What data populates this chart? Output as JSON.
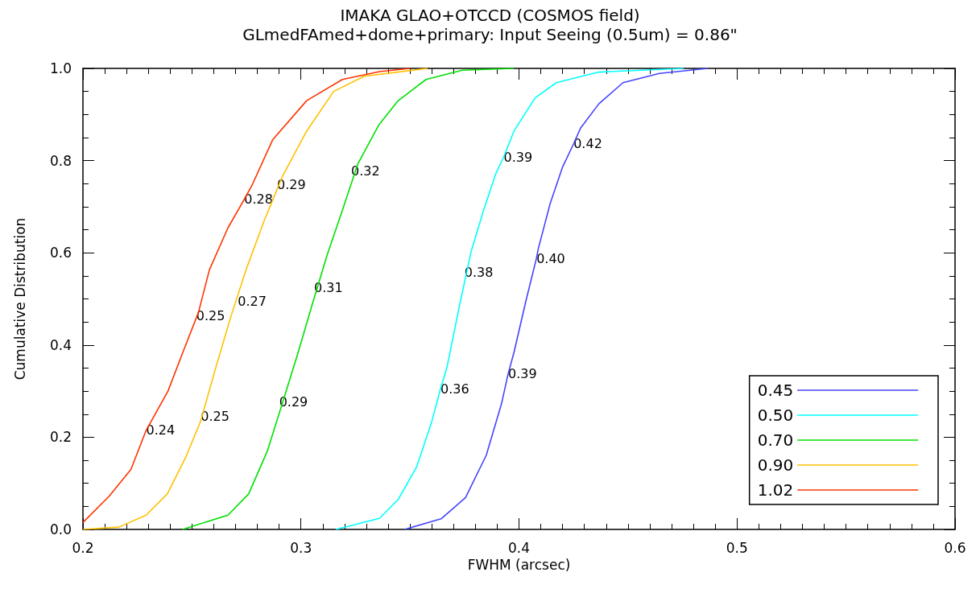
{
  "chart_data": {
    "type": "line",
    "title": "IMAKA GLAO+OTCCD (COSMOS field)",
    "subtitle": "GLmedFAmed+dome+primary: Input Seeing (0.5um) = 0.86\"",
    "xlabel": "FWHM (arcsec)",
    "ylabel": "Cumulative Distribution",
    "xlim": [
      0.2,
      0.6
    ],
    "xticks": [
      0.2,
      0.3,
      0.4,
      0.5,
      0.6
    ],
    "ylim": [
      0,
      1
    ],
    "yticks": [
      {
        "value": 0,
        "label": "0.0"
      },
      0.2,
      0.4,
      0.6,
      0.8,
      {
        "value": 1,
        "label": "1.0"
      }
    ],
    "grid": false,
    "legend": "bottom right",
    "marker": "none",
    "line_style": "solid",
    "series": [
      {
        "name": "0.45",
        "color": "#4444ff",
        "x": [
          0.3476,
          0.3643,
          0.3755,
          0.385,
          0.392,
          0.395,
          0.3977,
          0.4032,
          0.408,
          0.4088,
          0.4143,
          0.4199,
          0.425,
          0.4283,
          0.4366,
          0.4477,
          0.4644,
          0.4866
        ],
        "values": [
          0,
          0.023,
          0.069,
          0.161,
          0.273,
          0.337,
          0.384,
          0.496,
          0.588,
          0.608,
          0.707,
          0.785,
          0.836,
          0.871,
          0.923,
          0.969,
          0.989,
          1.0
        ]
      },
      {
        "name": "0.50",
        "color": "#00ffff",
        "x": [
          0.316,
          0.336,
          0.3446,
          0.353,
          0.36,
          0.364,
          0.367,
          0.3726,
          0.378,
          0.3838,
          0.3894,
          0.393,
          0.3977,
          0.4074,
          0.4171,
          0.4366,
          0.4755
        ],
        "values": [
          0,
          0.024,
          0.065,
          0.135,
          0.234,
          0.305,
          0.352,
          0.483,
          0.602,
          0.693,
          0.772,
          0.808,
          0.864,
          0.936,
          0.969,
          0.992,
          1.0
        ]
      },
      {
        "name": "0.70",
        "color": "#00e000",
        "x": [
          0.2457,
          0.2665,
          0.276,
          0.2845,
          0.2915,
          0.2984,
          0.3053,
          0.312,
          0.3192,
          0.326,
          0.3358,
          0.3446,
          0.3574,
          0.374,
          0.3976
        ],
        "values": [
          0,
          0.031,
          0.077,
          0.169,
          0.274,
          0.379,
          0.49,
          0.595,
          0.695,
          0.792,
          0.878,
          0.93,
          0.976,
          0.996,
          1.0
        ]
      },
      {
        "name": "0.90",
        "color": "#ffc000",
        "x": [
          0.2,
          0.2165,
          0.229,
          0.2387,
          0.247,
          0.254,
          0.261,
          0.268,
          0.2748,
          0.283,
          0.2915,
          0.3026,
          0.315,
          0.329,
          0.358
        ],
        "values": [
          0,
          0.005,
          0.031,
          0.077,
          0.155,
          0.235,
          0.352,
          0.464,
          0.563,
          0.668,
          0.766,
          0.864,
          0.95,
          0.983,
          1.0
        ]
      },
      {
        "name": "1.02",
        "color": "#ff3300",
        "x": [
          0.2,
          0.212,
          0.222,
          0.229,
          0.239,
          0.246,
          0.253,
          0.258,
          0.2665,
          0.274,
          0.2776,
          0.287,
          0.3026,
          0.319,
          0.336,
          0.35
        ],
        "values": [
          0.015,
          0.072,
          0.13,
          0.215,
          0.3,
          0.386,
          0.471,
          0.563,
          0.654,
          0.716,
          0.747,
          0.845,
          0.93,
          0.976,
          0.993,
          1.0
        ]
      }
    ],
    "annotations": [
      {
        "text": "0.42",
        "x": 0.425,
        "y": 0.836
      },
      {
        "text": "0.40",
        "x": 0.408,
        "y": 0.588
      },
      {
        "text": "0.39",
        "x": 0.395,
        "y": 0.337
      },
      {
        "text": "0.39",
        "x": 0.393,
        "y": 0.808
      },
      {
        "text": "0.38",
        "x": 0.375,
        "y": 0.557
      },
      {
        "text": "0.36",
        "x": 0.364,
        "y": 0.305
      },
      {
        "text": "0.32",
        "x": 0.323,
        "y": 0.777
      },
      {
        "text": "0.31",
        "x": 0.306,
        "y": 0.525
      },
      {
        "text": "0.29",
        "x": 0.29,
        "y": 0.276
      },
      {
        "text": "0.29",
        "x": 0.289,
        "y": 0.747
      },
      {
        "text": "0.27",
        "x": 0.271,
        "y": 0.494
      },
      {
        "text": "0.25",
        "x": 0.254,
        "y": 0.246
      },
      {
        "text": "0.28",
        "x": 0.274,
        "y": 0.716
      },
      {
        "text": "0.25",
        "x": 0.252,
        "y": 0.464
      },
      {
        "text": "0.24",
        "x": 0.229,
        "y": 0.215
      }
    ]
  }
}
